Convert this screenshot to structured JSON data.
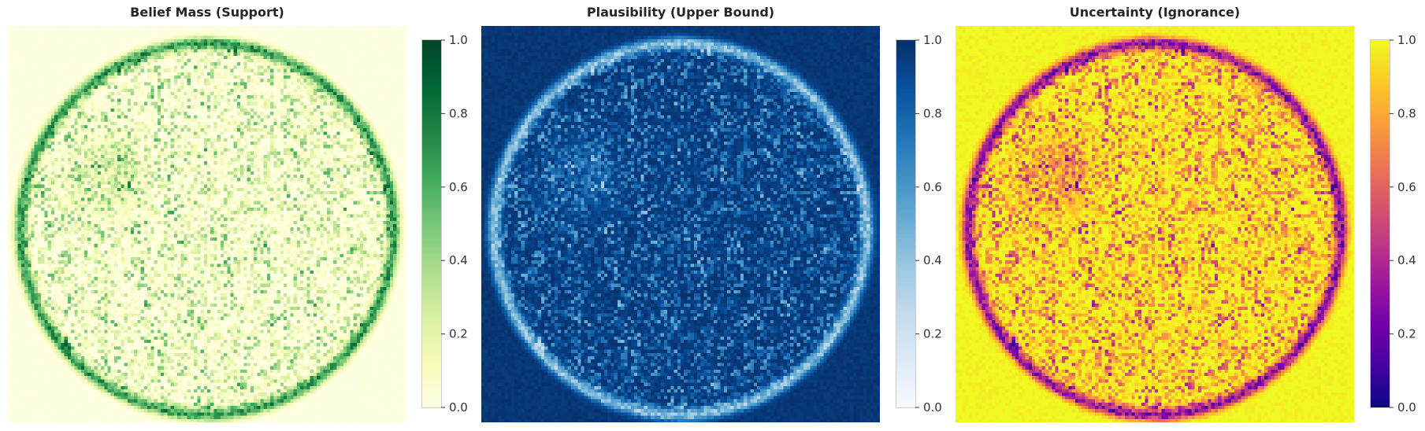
{
  "chart_data": [
    {
      "type": "heatmap",
      "title": "Belief Mass (Support)",
      "colormap": "Greens",
      "colors": [
        "#ffffe5",
        "#f7fcb9",
        "#d9f0a3",
        "#addd8e",
        "#78c679",
        "#41ab5d",
        "#238443",
        "#006837",
        "#004529"
      ],
      "clim": [
        0,
        1
      ],
      "colorbar_ticks": [
        "0.0",
        "0.2",
        "0.4",
        "0.6",
        "0.8",
        "1.0"
      ],
      "grid": false,
      "typical_value": 0.08
    },
    {
      "type": "heatmap",
      "title": "Plausibility (Upper Bound)",
      "colormap": "Blues",
      "colors": [
        "#f7fbff",
        "#deebf7",
        "#c6dbef",
        "#9ecae1",
        "#6baed6",
        "#4292c6",
        "#2171b5",
        "#08519c",
        "#08306b"
      ],
      "clim": [
        0,
        1
      ],
      "colorbar_ticks": [
        "0.0",
        "0.2",
        "0.4",
        "0.6",
        "0.8",
        "1.0"
      ],
      "grid": false,
      "typical_value": 0.9
    },
    {
      "type": "heatmap",
      "title": "Uncertainty (Ignorance)",
      "colormap": "plasma",
      "colors": [
        "#0d0887",
        "#46039f",
        "#7201a8",
        "#9c179e",
        "#bd3786",
        "#d8576b",
        "#ed7953",
        "#fb9f3a",
        "#fdca26",
        "#f0f921"
      ],
      "clim": [
        0,
        1
      ],
      "colorbar_ticks": [
        "0.0",
        "0.2",
        "0.4",
        "0.6",
        "0.8",
        "1.0"
      ],
      "grid": false,
      "typical_value": 0.85
    }
  ]
}
